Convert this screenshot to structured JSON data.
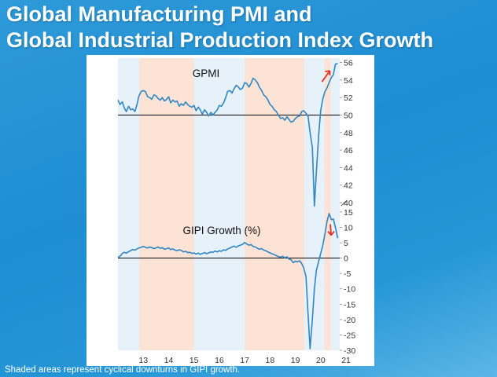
{
  "title": {
    "line1": "Global Manufacturing PMI and",
    "line2": "Global Industrial Production Index Growth"
  },
  "footnote": "Shaded areas represent cyclical downturns in GIPI growth.",
  "colors": {
    "background": "#1e8dd2",
    "line": "#2f86c4",
    "shade_downturn": "#fde3d5",
    "shade_other": "#e6f1fa",
    "arrow": "#e0302a",
    "refline": "#000000"
  },
  "chart_data": [
    {
      "type": "line",
      "label": "GPMI",
      "y_ticks": [
        "56",
        "54",
        "52",
        "50",
        "48",
        "46",
        "44",
        "42",
        "40"
      ],
      "ylim": [
        40,
        56.5
      ],
      "reference_line": 50,
      "x_ticks": [
        "13",
        "14",
        "15",
        "16",
        "17",
        "18",
        "19",
        "20",
        "21"
      ],
      "xlim": [
        2012.5,
        2021.25
      ],
      "shaded_downturns": [
        [
          2013.35,
          2015.5
        ],
        [
          2017.5,
          2019.85
        ],
        [
          2020.65,
          2020.9
        ]
      ],
      "series": [
        {
          "name": "GPMI",
          "x": [
            2012.5,
            2012.58,
            2012.67,
            2012.75,
            2012.83,
            2012.92,
            2013.0,
            2013.08,
            2013.17,
            2013.25,
            2013.33,
            2013.42,
            2013.5,
            2013.58,
            2013.67,
            2013.75,
            2013.83,
            2013.92,
            2014.0,
            2014.08,
            2014.17,
            2014.25,
            2014.33,
            2014.42,
            2014.5,
            2014.58,
            2014.67,
            2014.75,
            2014.83,
            2014.92,
            2015.0,
            2015.08,
            2015.17,
            2015.25,
            2015.33,
            2015.42,
            2015.5,
            2015.58,
            2015.67,
            2015.75,
            2015.83,
            2015.92,
            2016.0,
            2016.08,
            2016.17,
            2016.25,
            2016.33,
            2016.42,
            2016.5,
            2016.58,
            2016.67,
            2016.75,
            2016.83,
            2016.92,
            2017.0,
            2017.08,
            2017.17,
            2017.25,
            2017.33,
            2017.42,
            2017.5,
            2017.58,
            2017.67,
            2017.75,
            2017.83,
            2017.92,
            2018.0,
            2018.08,
            2018.17,
            2018.25,
            2018.33,
            2018.42,
            2018.5,
            2018.58,
            2018.67,
            2018.75,
            2018.83,
            2018.92,
            2019.0,
            2019.08,
            2019.17,
            2019.25,
            2019.33,
            2019.42,
            2019.5,
            2019.58,
            2019.67,
            2019.75,
            2019.83,
            2019.92,
            2020.0,
            2020.08,
            2020.17,
            2020.25,
            2020.33,
            2020.42,
            2020.5,
            2020.58,
            2020.67,
            2020.75,
            2020.83,
            2020.92,
            2021.0,
            2021.08,
            2021.17
          ],
          "y": [
            51.7,
            51.2,
            51.5,
            50.8,
            50.4,
            51.0,
            50.6,
            50.7,
            50.4,
            51.2,
            52.2,
            52.7,
            52.8,
            52.7,
            52.1,
            52.0,
            51.8,
            52.3,
            52.2,
            51.9,
            51.7,
            52.0,
            51.6,
            51.8,
            52.1,
            51.4,
            51.7,
            51.5,
            51.6,
            51.0,
            51.3,
            51.1,
            51.5,
            51.2,
            51.0,
            50.9,
            51.1,
            50.5,
            50.9,
            50.6,
            50.1,
            50.6,
            50.3,
            49.9,
            50.3,
            50.0,
            50.3,
            50.6,
            51.1,
            51.0,
            51.4,
            52.0,
            52.7,
            52.8,
            52.5,
            53.0,
            53.4,
            53.2,
            52.9,
            53.1,
            53.7,
            53.6,
            53.2,
            53.6,
            54.2,
            54.0,
            53.7,
            53.2,
            52.8,
            52.3,
            52.1,
            51.7,
            51.2,
            51.0,
            50.6,
            50.4,
            50.0,
            49.6,
            49.7,
            49.4,
            49.8,
            49.5,
            49.2,
            49.3,
            49.6,
            49.8,
            49.9,
            50.4,
            50.5,
            50.2,
            49.9,
            48.0,
            46.3,
            39.6,
            43.5,
            47.8,
            50.5,
            51.8,
            52.7,
            53.1,
            53.7,
            54.3,
            54.6,
            55.8,
            55.9
          ]
        }
      ]
    },
    {
      "type": "line",
      "label": "GIPI Growth (%)",
      "y_ticks": [
        "15",
        "10",
        "5",
        "0",
        "-5",
        "-10",
        "-15",
        "-20",
        "-25",
        "-30"
      ],
      "ylim": [
        -30,
        16
      ],
      "reference_line": 0,
      "x_ticks": [
        "13",
        "14",
        "15",
        "16",
        "17",
        "18",
        "19",
        "20",
        "21"
      ],
      "xlim": [
        2012.5,
        2021.25
      ],
      "shaded_downturns": [
        [
          2013.35,
          2015.5
        ],
        [
          2017.5,
          2019.85
        ],
        [
          2020.65,
          2020.9
        ]
      ],
      "series": [
        {
          "name": "GIPI Growth (%)",
          "x": [
            2012.5,
            2012.58,
            2012.67,
            2012.75,
            2012.83,
            2012.92,
            2013.0,
            2013.08,
            2013.17,
            2013.25,
            2013.33,
            2013.42,
            2013.5,
            2013.58,
            2013.67,
            2013.75,
            2013.83,
            2013.92,
            2014.0,
            2014.08,
            2014.17,
            2014.25,
            2014.33,
            2014.42,
            2014.5,
            2014.58,
            2014.67,
            2014.75,
            2014.83,
            2014.92,
            2015.0,
            2015.08,
            2015.17,
            2015.25,
            2015.33,
            2015.42,
            2015.5,
            2015.58,
            2015.67,
            2015.75,
            2015.83,
            2015.92,
            2016.0,
            2016.08,
            2016.17,
            2016.25,
            2016.33,
            2016.42,
            2016.5,
            2016.58,
            2016.67,
            2016.75,
            2016.83,
            2016.92,
            2017.0,
            2017.08,
            2017.17,
            2017.25,
            2017.33,
            2017.42,
            2017.5,
            2017.58,
            2017.67,
            2017.75,
            2017.83,
            2017.92,
            2018.0,
            2018.08,
            2018.17,
            2018.25,
            2018.33,
            2018.42,
            2018.5,
            2018.58,
            2018.67,
            2018.75,
            2018.83,
            2018.92,
            2019.0,
            2019.08,
            2019.17,
            2019.25,
            2019.33,
            2019.42,
            2019.5,
            2019.58,
            2019.67,
            2019.75,
            2019.83,
            2019.92,
            2020.0,
            2020.08,
            2020.17,
            2020.25,
            2020.33,
            2020.42,
            2020.5,
            2020.58,
            2020.67,
            2020.75,
            2020.83,
            2020.92,
            2021.0,
            2021.08,
            2021.17
          ],
          "y": [
            0.3,
            0.6,
            1.5,
            1.9,
            1.6,
            2.1,
            2.4,
            2.8,
            2.6,
            3.0,
            3.3,
            3.5,
            3.8,
            3.5,
            3.3,
            3.6,
            3.4,
            3.1,
            3.3,
            3.6,
            3.2,
            3.4,
            2.9,
            3.1,
            3.3,
            2.8,
            3.0,
            2.6,
            2.4,
            2.7,
            2.5,
            2.0,
            2.2,
            1.8,
            1.9,
            1.5,
            1.7,
            1.3,
            1.6,
            1.2,
            1.5,
            1.8,
            1.4,
            1.7,
            2.0,
            1.9,
            2.3,
            2.0,
            2.4,
            2.2,
            2.7,
            2.5,
            3.0,
            3.3,
            3.6,
            3.9,
            3.5,
            4.0,
            4.2,
            4.5,
            5.1,
            4.6,
            4.2,
            4.4,
            3.8,
            3.6,
            3.2,
            2.9,
            3.1,
            2.6,
            2.4,
            2.0,
            1.7,
            1.4,
            1.1,
            0.8,
            0.5,
            0.3,
            0.6,
            0.1,
            0.4,
            -0.3,
            -0.5,
            -1.5,
            -1.0,
            -1.2,
            -0.9,
            -1.8,
            -3.2,
            -6.0,
            -18.0,
            -29.5,
            -20.0,
            -10.0,
            -4.0,
            -1.0,
            1.5,
            4.0,
            8.0,
            12.0,
            14.5,
            12.5,
            12.7,
            10.0,
            6.5
          ]
        }
      ]
    }
  ]
}
